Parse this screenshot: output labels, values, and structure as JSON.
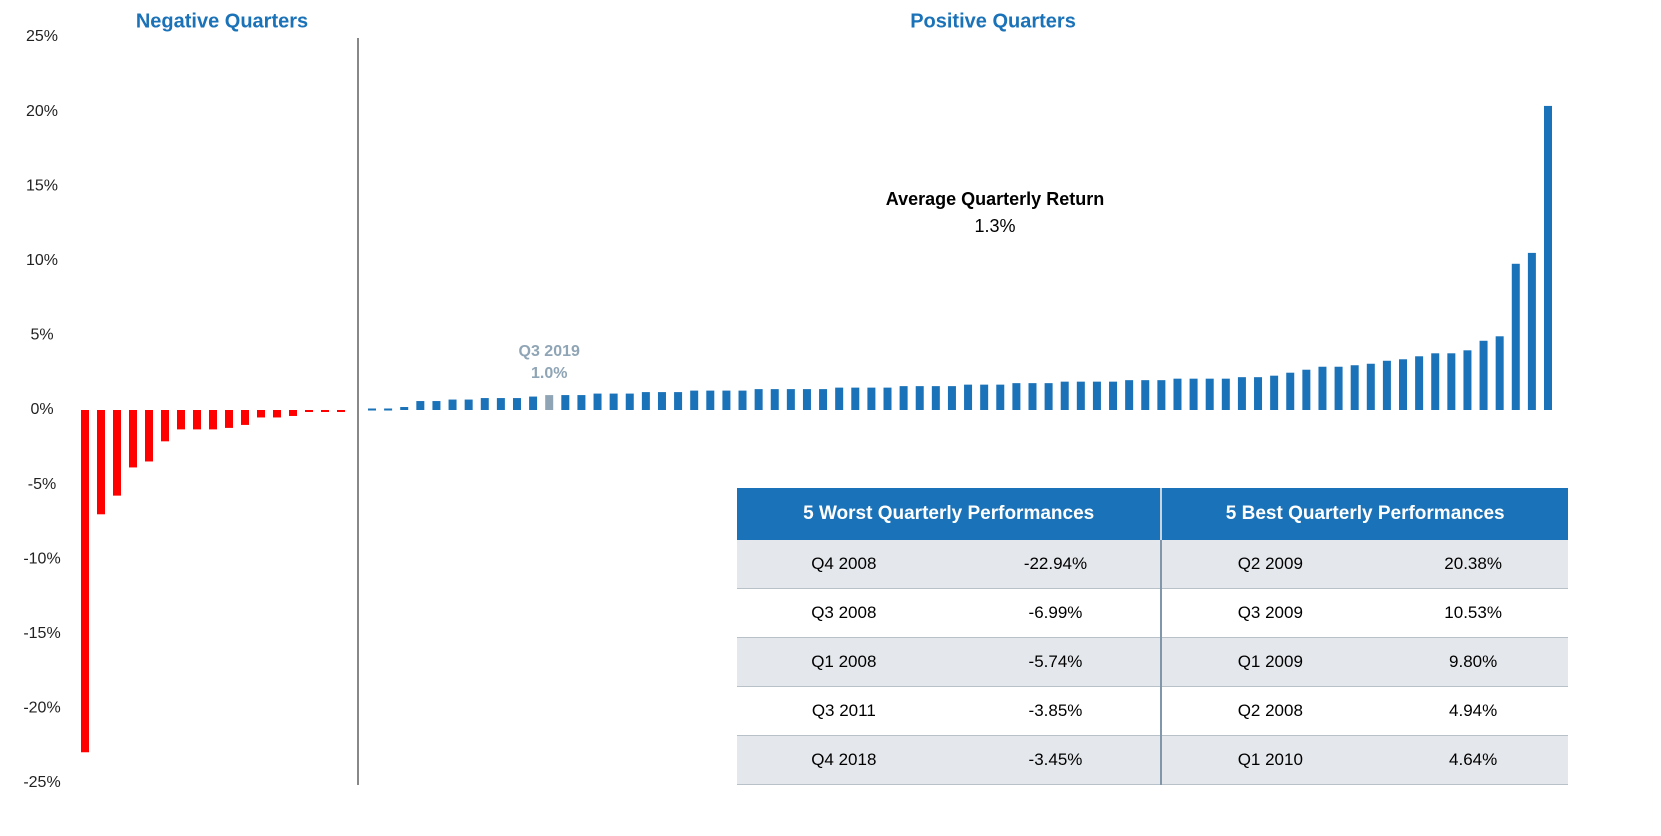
{
  "chart_data": {
    "type": "bar",
    "ylim": [
      -25,
      25
    ],
    "yticks": [
      {
        "value": 25,
        "label": "25%"
      },
      {
        "value": 20,
        "label": "20%"
      },
      {
        "value": 15,
        "label": "15%"
      },
      {
        "value": 10,
        "label": "10%"
      },
      {
        "value": 5,
        "label": "5%"
      },
      {
        "value": 0,
        "label": "0%"
      },
      {
        "value": -5,
        "label": "-5%"
      },
      {
        "value": -10,
        "label": "-10%"
      },
      {
        "value": -15,
        "label": "-15%"
      },
      {
        "value": -20,
        "label": "-20%"
      },
      {
        "value": -25,
        "label": "-25%"
      }
    ],
    "negative": {
      "name": "Negative Quarters",
      "color": "#ff0000",
      "values": [
        -22.94,
        -6.99,
        -5.74,
        -3.85,
        -3.45,
        -2.1,
        -1.3,
        -1.3,
        -1.3,
        -1.2,
        -1.0,
        -0.5,
        -0.5,
        -0.4,
        -0.1,
        -0.1,
        -0.1
      ]
    },
    "positive": {
      "name": "Positive Quarters",
      "color": "#1a72b8",
      "values": [
        0.1,
        0.1,
        0.2,
        0.6,
        0.6,
        0.7,
        0.7,
        0.8,
        0.8,
        0.8,
        0.9,
        1.0,
        1.0,
        1.0,
        1.1,
        1.1,
        1.1,
        1.2,
        1.2,
        1.2,
        1.3,
        1.3,
        1.3,
        1.3,
        1.4,
        1.4,
        1.4,
        1.4,
        1.4,
        1.5,
        1.5,
        1.5,
        1.5,
        1.6,
        1.6,
        1.6,
        1.6,
        1.7,
        1.7,
        1.7,
        1.8,
        1.8,
        1.8,
        1.9,
        1.9,
        1.9,
        1.9,
        2.0,
        2.0,
        2.0,
        2.1,
        2.1,
        2.1,
        2.1,
        2.2,
        2.2,
        2.3,
        2.5,
        2.7,
        2.9,
        2.9,
        3.0,
        3.1,
        3.3,
        3.4,
        3.6,
        3.8,
        3.8,
        4.0,
        4.64,
        4.94,
        9.8,
        10.53,
        20.38
      ]
    },
    "highlight": {
      "index": 11,
      "label": "Q3 2019",
      "value_label": "1.0%",
      "color": "#8fa5b5"
    },
    "annotation": {
      "title": "Average Quarterly Return",
      "value_label": "1.3%"
    }
  },
  "table": {
    "headers": [
      "5 Worst Quarterly Performances",
      "5 Best Quarterly Performances"
    ],
    "rows": [
      [
        "Q4 2008",
        "-22.94%",
        "Q2 2009",
        "20.38%"
      ],
      [
        "Q3 2008",
        "-6.99%",
        "Q3 2009",
        "10.53%"
      ],
      [
        "Q1 2008",
        "-5.74%",
        "Q1 2009",
        "9.80%"
      ],
      [
        "Q3 2011",
        "-3.85%",
        "Q2 2008",
        "4.94%"
      ],
      [
        "Q4 2018",
        "-3.45%",
        "Q1 2010",
        "4.64%"
      ]
    ]
  }
}
